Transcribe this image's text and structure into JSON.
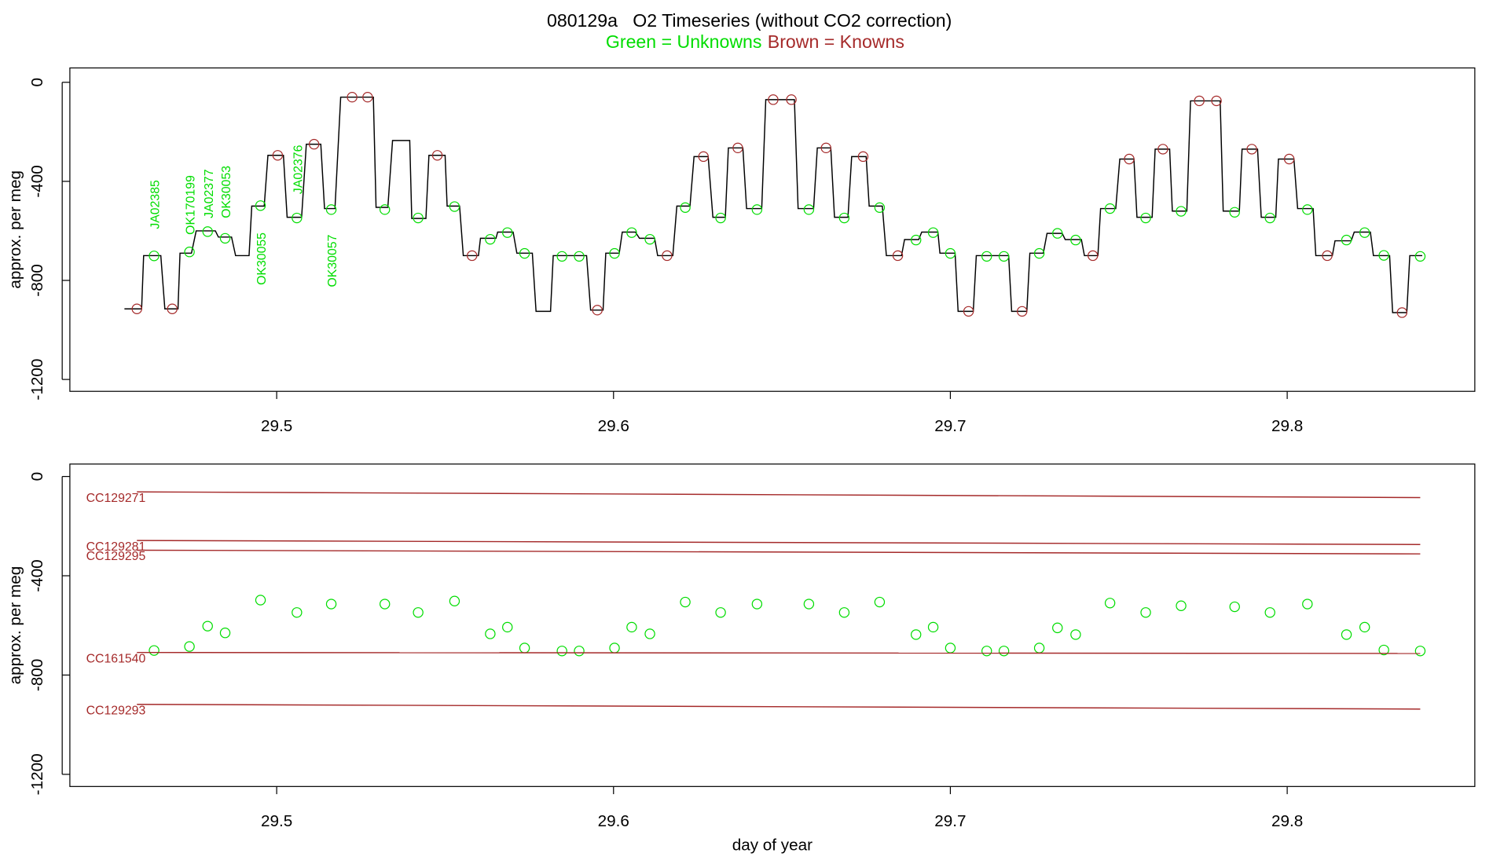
{
  "chart_data": [
    {
      "type": "line",
      "title": "080129a   O2 Timeseries (without CO2 correction)",
      "ylabel": "approx. per meg",
      "xlim": [
        29.4386,
        29.8557
      ],
      "ylim": [
        -1248,
        58
      ],
      "xticks": [
        29.5,
        29.6,
        29.7,
        29.8
      ],
      "yticks": [
        0,
        -400,
        -800,
        -1200
      ],
      "legend": "top center",
      "annotations": [
        "JA02385",
        "OK170199",
        "JA02377",
        "OK30053",
        "OK30055",
        "JA02376",
        "OK30057"
      ],
      "series": [
        {
          "type": "line",
          "color": "#000000",
          "x": [
            29.4548,
            29.4599,
            29.4605,
            29.4656,
            29.4668,
            29.4707,
            29.4713,
            29.4747,
            29.4761,
            29.4818,
            29.4827,
            29.4866,
            29.4878,
            29.4918,
            29.4926,
            29.4963,
            29.4974,
            29.502,
            29.5031,
            29.5074,
            29.5088,
            29.5131,
            29.5142,
            29.5173,
            29.519,
            29.5287,
            29.5295,
            29.533,
            29.5344,
            29.5395,
            29.5401,
            29.5443,
            29.5452,
            29.55,
            29.5506,
            29.5543,
            29.5554,
            29.5599,
            29.5605,
            29.5651,
            29.5656,
            29.5702,
            29.5713,
            29.5759,
            29.577,
            29.5813,
            29.5821,
            29.592,
            29.5932,
            29.5969,
            29.5977,
            29.6017,
            29.6026,
            29.6065,
            29.6077,
            29.6122,
            29.6131,
            29.6176,
            29.6188,
            29.6227,
            29.6239,
            29.6281,
            29.6295,
            29.6332,
            29.6341,
            29.6384,
            29.6395,
            29.644,
            29.6452,
            29.6537,
            29.6548,
            29.6594,
            29.6605,
            29.6645,
            29.6656,
            29.6696,
            29.6707,
            29.675,
            29.6759,
            29.6798,
            29.681,
            29.6855,
            29.6864,
            29.6906,
            29.6915,
            29.6963,
            29.6969,
            29.7014,
            29.7023,
            29.7068,
            29.7077,
            29.7173,
            29.7182,
            29.7227,
            29.7236,
            29.7276,
            29.7287,
            29.7332,
            29.7341,
            29.7389,
            29.7398,
            29.7438,
            29.7446,
            29.7491,
            29.7503,
            29.7545,
            29.7554,
            29.7599,
            29.7608,
            29.7651,
            29.7659,
            29.7702,
            29.7713,
            29.7801,
            29.781,
            29.7858,
            29.7866,
            29.7912,
            29.7923,
            29.7966,
            29.7974,
            29.802,
            29.8031,
            29.8077,
            29.8085,
            29.8134,
            29.8142,
            29.819,
            29.8199,
            29.8247,
            29.8256,
            29.8304,
            29.8313,
            29.8355,
            29.8364,
            29.8401
          ],
          "values": [
            -915,
            -915,
            -700,
            -700,
            -915,
            -915,
            -690,
            -690,
            -600,
            -600,
            -625,
            -625,
            -700,
            -700,
            -500,
            -500,
            -295,
            -295,
            -545,
            -545,
            -250,
            -250,
            -510,
            -510,
            -60,
            -60,
            -505,
            -505,
            -235,
            -235,
            -550,
            -550,
            -295,
            -295,
            -500,
            -500,
            -700,
            -700,
            -630,
            -630,
            -605,
            -605,
            -690,
            -690,
            -925,
            -925,
            -700,
            -700,
            -920,
            -920,
            -690,
            -690,
            -605,
            -605,
            -630,
            -630,
            -700,
            -700,
            -500,
            -500,
            -300,
            -300,
            -545,
            -545,
            -265,
            -265,
            -510,
            -510,
            -70,
            -70,
            -510,
            -510,
            -265,
            -265,
            -545,
            -545,
            -300,
            -300,
            -500,
            -500,
            -700,
            -700,
            -635,
            -635,
            -605,
            -605,
            -690,
            -690,
            -925,
            -925,
            -700,
            -700,
            -925,
            -925,
            -690,
            -690,
            -610,
            -610,
            -635,
            -635,
            -700,
            -700,
            -510,
            -510,
            -310,
            -310,
            -545,
            -545,
            -270,
            -270,
            -520,
            -520,
            -75,
            -75,
            -520,
            -520,
            -270,
            -270,
            -545,
            -545,
            -310,
            -310,
            -510,
            -510,
            -700,
            -700,
            -640,
            -640,
            -605,
            -605,
            -700,
            -700,
            -930,
            -930,
            -700,
            -700
          ]
        },
        {
          "type": "scatter",
          "name": "Green = Unknowns",
          "color": "#00dd00",
          "x": [
            29.4636,
            29.4741,
            29.4795,
            29.4847,
            29.4952,
            29.506,
            29.5162,
            29.5321,
            29.542,
            29.5528,
            29.5634,
            29.5685,
            29.5736,
            29.5847,
            29.5898,
            29.6003,
            29.6054,
            29.6108,
            29.6213,
            29.6318,
            29.6426,
            29.658,
            29.6685,
            29.679,
            29.6898,
            29.6949,
            29.7,
            29.7108,
            29.7159,
            29.7264,
            29.7318,
            29.7372,
            29.7474,
            29.758,
            29.7685,
            29.7844,
            29.7949,
            29.806,
            29.8176,
            29.823,
            29.8287,
            29.8395
          ],
          "values": [
            -701,
            -685,
            -603,
            -630,
            -498,
            -548,
            -514,
            -514,
            -548,
            -502,
            -634,
            -607,
            -691,
            -703,
            -703,
            -691,
            -607,
            -634,
            -506,
            -548,
            -514,
            -514,
            -548,
            -506,
            -637,
            -607,
            -691,
            -703,
            -703,
            -691,
            -610,
            -637,
            -510,
            -548,
            -521,
            -525,
            -548,
            -514,
            -637,
            -607,
            -699,
            -703
          ]
        },
        {
          "type": "scatter",
          "name": "Brown = Knowns",
          "color": "#a52a2a",
          "x": [
            29.4585,
            29.469,
            29.5003,
            29.5111,
            29.5224,
            29.527,
            29.5477,
            29.558,
            29.5952,
            29.6159,
            29.6267,
            29.6369,
            29.6474,
            29.6528,
            29.6631,
            29.6741,
            29.6844,
            29.7054,
            29.7213,
            29.7423,
            29.7531,
            29.7631,
            29.7739,
            29.779,
            29.7895,
            29.8006,
            29.8119,
            29.8341
          ],
          "values": [
            -915,
            -915,
            -295,
            -250,
            -60,
            -60,
            -295,
            -700,
            -920,
            -700,
            -300,
            -265,
            -70,
            -70,
            -265,
            -300,
            -700,
            -925,
            -925,
            -700,
            -310,
            -270,
            -75,
            -75,
            -270,
            -310,
            -700,
            -930
          ]
        }
      ]
    },
    {
      "type": "line",
      "xlabel": "day of year",
      "ylabel": "approx. per meg",
      "xlim": [
        29.4386,
        29.8557
      ],
      "ylim": [
        -1249,
        50
      ],
      "xticks": [
        29.5,
        29.6,
        29.7,
        29.8
      ],
      "yticks": [
        0,
        -400,
        -800,
        -1200
      ],
      "series_labels": "left",
      "series": [
        {
          "type": "scatter",
          "color": "#00dd00",
          "x": [
            29.4636,
            29.4741,
            29.4795,
            29.4847,
            29.4952,
            29.506,
            29.5162,
            29.5321,
            29.542,
            29.5528,
            29.5634,
            29.5685,
            29.5736,
            29.5847,
            29.5898,
            29.6003,
            29.6054,
            29.6108,
            29.6213,
            29.6318,
            29.6426,
            29.658,
            29.6685,
            29.679,
            29.6898,
            29.6949,
            29.7,
            29.7108,
            29.7159,
            29.7264,
            29.7318,
            29.7372,
            29.7474,
            29.758,
            29.7685,
            29.7844,
            29.7949,
            29.806,
            29.8176,
            29.823,
            29.8287,
            29.8395
          ],
          "values": [
            -701,
            -685,
            -603,
            -630,
            -498,
            -548,
            -514,
            -514,
            -548,
            -502,
            -634,
            -607,
            -691,
            -703,
            -703,
            -691,
            -607,
            -634,
            -506,
            -548,
            -514,
            -514,
            -548,
            -506,
            -637,
            -607,
            -691,
            -703,
            -703,
            -691,
            -610,
            -637,
            -510,
            -548,
            -521,
            -525,
            -548,
            -514,
            -637,
            -607,
            -699,
            -703
          ]
        },
        {
          "type": "line",
          "name": "CC129271",
          "color": "#a52a2a",
          "x": [
            29.4585,
            29.8395
          ],
          "values": [
            -62,
            -85
          ]
        },
        {
          "type": "line",
          "name": "CC129281",
          "color": "#a52a2a",
          "x": [
            29.4585,
            29.8395
          ],
          "values": [
            -258,
            -274
          ]
        },
        {
          "type": "line",
          "name": "CC129295",
          "color": "#a52a2a",
          "x": [
            29.4585,
            29.8395
          ],
          "values": [
            -297,
            -312
          ]
        },
        {
          "type": "line",
          "name": "CC161540",
          "color": "#a52a2a",
          "x": [
            29.4585,
            29.8395
          ],
          "values": [
            -709,
            -713
          ]
        },
        {
          "type": "line",
          "name": "CC129293",
          "color": "#a52a2a",
          "x": [
            29.4585,
            29.8395
          ],
          "values": [
            -918,
            -937
          ]
        }
      ]
    }
  ]
}
